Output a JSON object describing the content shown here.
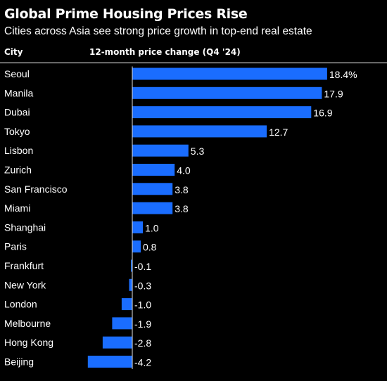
{
  "title": "Global Prime Housing Prices Rise",
  "subtitle": "Cities across Asia see strong price growth in top-end real estate",
  "headers": {
    "city": "City",
    "value": "12-month price change (Q4 '24)"
  },
  "colors": {
    "background": "#000000",
    "bar": "#1a6dff",
    "text": "#ffffff",
    "zero_line": "#e0e0e0"
  },
  "chart_data": {
    "type": "bar",
    "orientation": "horizontal",
    "categories": [
      "Seoul",
      "Manila",
      "Dubai",
      "Tokyo",
      "Lisbon",
      "Zurich",
      "San Francisco",
      "Miami",
      "Shanghai",
      "Paris",
      "Frankfurt",
      "New York",
      "London",
      "Melbourne",
      "Hong Kong",
      "Beijing"
    ],
    "values": [
      18.4,
      17.9,
      16.9,
      12.7,
      5.3,
      4.0,
      3.8,
      3.8,
      1.0,
      0.8,
      -0.1,
      -0.3,
      -1.0,
      -1.9,
      -2.8,
      -4.2
    ],
    "labels": [
      "18.4%",
      "17.9",
      "16.9",
      "12.7",
      "5.3",
      "4.0",
      "3.8",
      "3.8",
      "1.0",
      "0.8",
      "-0.1",
      "-0.3",
      "-1.0",
      "-1.9",
      "-2.8",
      "-4.2"
    ],
    "xlabel": "12-month price change (Q4 '24)",
    "ylabel": "City",
    "unit": "%",
    "xlim": [
      -4.2,
      18.4
    ],
    "grid": false,
    "legend": "none"
  }
}
